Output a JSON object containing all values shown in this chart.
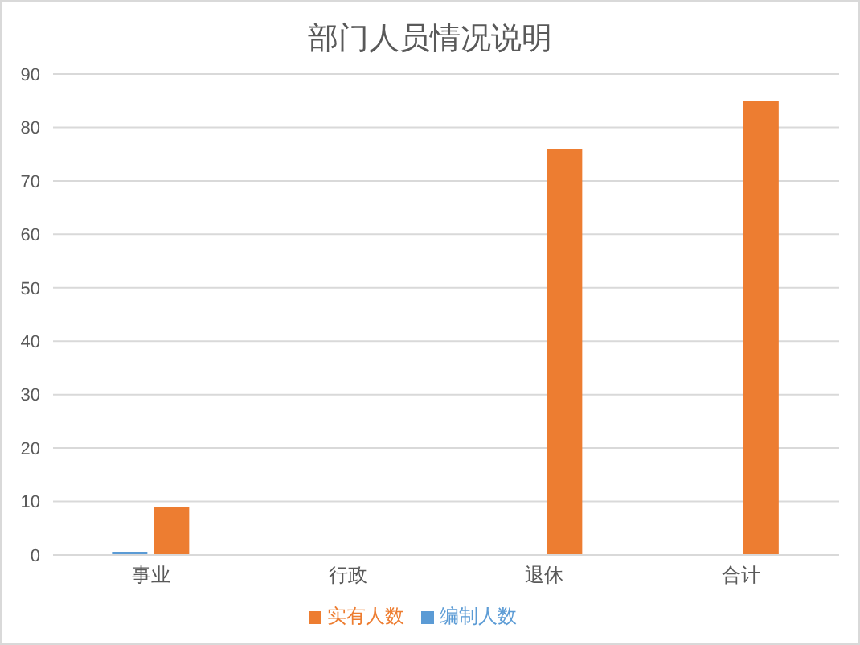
{
  "chart_data": {
    "type": "bar",
    "title": "部门人员情况说明",
    "categories": [
      "事业",
      "行政",
      "退休",
      "合计"
    ],
    "series": [
      {
        "name": "编制人数",
        "color": "#5b9bd5",
        "values": [
          0.6,
          0,
          0,
          0
        ]
      },
      {
        "name": "实有人数",
        "color": "#ed7d31",
        "values": [
          9,
          0,
          76,
          85
        ]
      }
    ],
    "ylim": [
      0,
      90
    ],
    "yticks": [
      0,
      10,
      20,
      30,
      40,
      50,
      60,
      70,
      80,
      90
    ],
    "grid": "y",
    "legend": "bottom"
  }
}
